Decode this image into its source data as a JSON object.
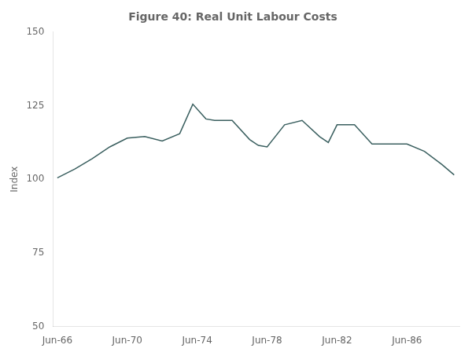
{
  "chart_data": {
    "type": "line",
    "title": "Figure 40: Real Unit Labour Costs",
    "ylabel": "Index",
    "x": [
      1966.5,
      1967.5,
      1968.5,
      1969.5,
      1970.5,
      1971.5,
      1972.5,
      1973.5,
      1974.25,
      1975.0,
      1975.5,
      1976.5,
      1977.5,
      1978.0,
      1978.5,
      1979.5,
      1980.5,
      1981.5,
      1982.0,
      1982.5,
      1983.5,
      1984.5,
      1985.5,
      1986.5,
      1987.5,
      1988.5,
      1989.2
    ],
    "values": [
      100.5,
      103.5,
      107.0,
      111.0,
      114.0,
      114.5,
      113.0,
      115.5,
      125.5,
      120.5,
      120.0,
      120.0,
      113.5,
      111.5,
      111.0,
      118.5,
      120.0,
      114.5,
      112.5,
      118.5,
      118.5,
      112.0,
      112.0,
      112.0,
      109.5,
      105.0,
      101.5
    ],
    "color": "#3a5f5f",
    "xlim": [
      1966.25,
      1989.5
    ],
    "xticks": [
      {
        "value": 1966.5,
        "label": "Jun-66"
      },
      {
        "value": 1970.5,
        "label": "Jun-70"
      },
      {
        "value": 1974.5,
        "label": "Jun-74"
      },
      {
        "value": 1978.5,
        "label": "Jun-78"
      },
      {
        "value": 1982.5,
        "label": "Jun-82"
      },
      {
        "value": 1986.5,
        "label": "Jun-86"
      }
    ],
    "ylim": [
      50,
      150
    ],
    "yticks": [
      50,
      75,
      100,
      125,
      150
    ],
    "grid": false
  }
}
